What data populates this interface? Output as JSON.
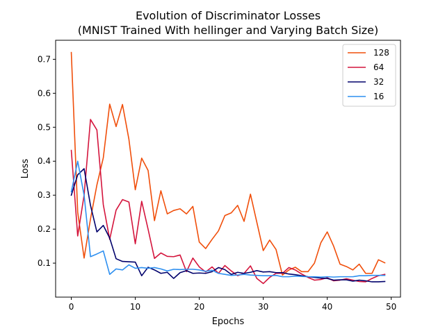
{
  "chart_data": {
    "type": "line",
    "title_line1": "Evolution of Discriminator Losses",
    "title_line2": "(MNIST Trained With hellinger and Varying Batch Size)",
    "xlabel": "Epochs",
    "ylabel": "Loss",
    "xlim": [
      -2.45,
      51.45
    ],
    "ylim": [
      0.0,
      0.756
    ],
    "xticks": [
      0,
      10,
      20,
      30,
      40,
      50
    ],
    "yticks": [
      0.1,
      0.2,
      0.3,
      0.4,
      0.5,
      0.6,
      0.7
    ],
    "legend_position": "top-right",
    "x": [
      0,
      1,
      2,
      3,
      4,
      5,
      6,
      7,
      8,
      9,
      10,
      11,
      12,
      13,
      14,
      15,
      16,
      17,
      18,
      19,
      20,
      21,
      22,
      23,
      24,
      25,
      26,
      27,
      28,
      29,
      30,
      31,
      32,
      33,
      34,
      35,
      36,
      37,
      38,
      39,
      40,
      41,
      42,
      43,
      44,
      45,
      46,
      47,
      48,
      49
    ],
    "series": [
      {
        "name": "128",
        "color": "#f04e0a",
        "values": [
          0.72,
          0.25,
          0.115,
          0.23,
          0.33,
          0.41,
          0.568,
          0.502,
          0.567,
          0.465,
          0.316,
          0.409,
          0.373,
          0.225,
          0.313,
          0.245,
          0.255,
          0.26,
          0.245,
          0.267,
          0.162,
          0.143,
          0.17,
          0.195,
          0.24,
          0.248,
          0.27,
          0.223,
          0.303,
          0.22,
          0.137,
          0.168,
          0.14,
          0.065,
          0.08,
          0.088,
          0.075,
          0.075,
          0.1,
          0.16,
          0.192,
          0.15,
          0.097,
          0.09,
          0.08,
          0.097,
          0.07,
          0.07,
          0.11,
          0.101
        ]
      },
      {
        "name": "64",
        "color": "#d4143c",
        "values": [
          0.432,
          0.18,
          0.3,
          0.523,
          0.492,
          0.272,
          0.17,
          0.256,
          0.287,
          0.28,
          0.157,
          0.282,
          0.2,
          0.114,
          0.13,
          0.12,
          0.119,
          0.124,
          0.075,
          0.115,
          0.089,
          0.074,
          0.089,
          0.07,
          0.093,
          0.077,
          0.063,
          0.07,
          0.092,
          0.055,
          0.04,
          0.058,
          0.07,
          0.07,
          0.087,
          0.08,
          0.068,
          0.058,
          0.05,
          0.052,
          0.057,
          0.048,
          0.05,
          0.054,
          0.05,
          0.046,
          0.045,
          0.055,
          0.063,
          0.067
        ]
      },
      {
        "name": "32",
        "color": "#00006b",
        "values": [
          0.3,
          0.36,
          0.378,
          0.27,
          0.192,
          0.211,
          0.174,
          0.113,
          0.105,
          0.104,
          0.103,
          0.063,
          0.088,
          0.08,
          0.07,
          0.073,
          0.055,
          0.072,
          0.078,
          0.07,
          0.071,
          0.07,
          0.075,
          0.087,
          0.081,
          0.067,
          0.073,
          0.07,
          0.073,
          0.078,
          0.074,
          0.075,
          0.072,
          0.072,
          0.068,
          0.066,
          0.063,
          0.06,
          0.058,
          0.056,
          0.055,
          0.05,
          0.051,
          0.051,
          0.047,
          0.05,
          0.048,
          0.045,
          0.045,
          0.046
        ]
      },
      {
        "name": "16",
        "color": "#2d8ff0",
        "values": [
          0.31,
          0.4,
          0.3,
          0.119,
          0.127,
          0.136,
          0.067,
          0.083,
          0.08,
          0.095,
          0.085,
          0.087,
          0.085,
          0.087,
          0.083,
          0.077,
          0.082,
          0.081,
          0.082,
          0.082,
          0.08,
          0.076,
          0.079,
          0.07,
          0.067,
          0.064,
          0.065,
          0.067,
          0.065,
          0.064,
          0.063,
          0.063,
          0.064,
          0.06,
          0.06,
          0.062,
          0.061,
          0.06,
          0.06,
          0.059,
          0.06,
          0.059,
          0.06,
          0.06,
          0.06,
          0.063,
          0.063,
          0.064,
          0.064,
          0.064
        ]
      }
    ]
  }
}
